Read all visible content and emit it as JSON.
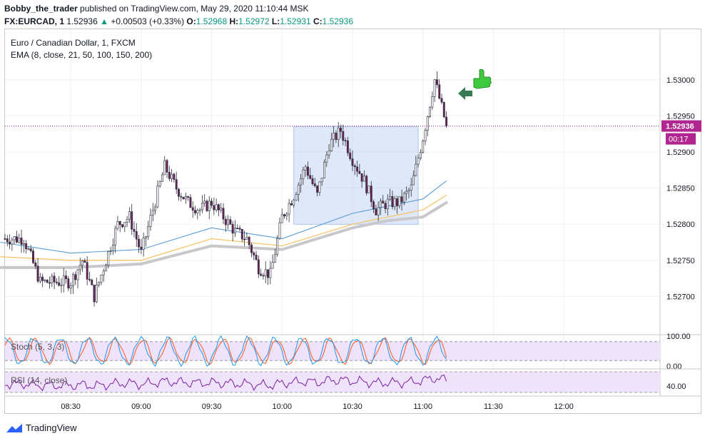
{
  "header": {
    "author": "Bobby_the_trader",
    "published": "published on TradingView.com, May 29, 2020 11:10:44 MSK",
    "symbol": "FX:EURCAD, 1",
    "last": "1.52936",
    "change_arrow": "▲",
    "change": "+0.00503 (+0.33%)",
    "o_label": "O:",
    "o": "1.52968",
    "h_label": "H:",
    "h": "1.52972",
    "l_label": "L:",
    "l": "1.52931",
    "c_label": "C:",
    "c": "1.52936"
  },
  "legend": {
    "instrument": "Euro / Canadian Dollar, 1, FXCM",
    "ema": "EMA (8, close, 21, 50, 100, 150, 200)"
  },
  "price_badge": {
    "value": "1.52936",
    "countdown": "00:17"
  },
  "stoch": {
    "label": "Stoch (5, 3, 3)",
    "ticks": [
      "100.00",
      "0.00"
    ],
    "upper_band": 80,
    "lower_band": 20
  },
  "rsi": {
    "label": "RSI (14, close)",
    "ticks": [
      "40.00"
    ]
  },
  "footer": {
    "brand": "TradingView"
  },
  "colors": {
    "up_candle": "#ffffff",
    "down_candle": "#6b1f5a",
    "ema_fast": "#5b9bd5",
    "ema_mid": "#f5c56b",
    "ema_slow": "#c8c8cc",
    "zone": "#b7cdf2",
    "stoch_k": "#2196f3",
    "stoch_d": "#ff5722",
    "rsi": "#7b1fa2",
    "indicator_bg": "#efe2fb",
    "thumbs_up": "#3ec93e",
    "arrow": "#3a7a52"
  },
  "icons": {
    "thumbs": "thumbs-up-icon",
    "arrow": "left-arrow-icon",
    "logo": "tradingview-logo-icon"
  },
  "chart_data": {
    "type": "candlestick",
    "title": "Euro / Canadian Dollar, 1, FXCM",
    "x_ticks": [
      "08:30",
      "09:00",
      "09:30",
      "10:00",
      "10:30",
      "11:00",
      "11:30",
      "12:00"
    ],
    "y_ticks": [
      1.53,
      1.5295,
      1.529,
      1.5285,
      1.528,
      1.5275,
      1.527
    ],
    "ylim": [
      1.5265,
      1.5307
    ],
    "last_price": 1.52936,
    "zone": {
      "from": "10:05",
      "to": "10:58",
      "low": 1.528,
      "high": 1.52935
    },
    "price_anchors": [
      [
        "08:10",
        1.5278
      ],
      [
        "08:17",
        1.5272
      ],
      [
        "08:24",
        1.5272
      ],
      [
        "08:30",
        1.5272
      ],
      [
        "08:35",
        1.5275
      ],
      [
        "08:40",
        1.527
      ],
      [
        "08:45",
        1.5275
      ],
      [
        "08:50",
        1.528
      ],
      [
        "08:55",
        1.5281
      ],
      [
        "09:00",
        1.5276
      ],
      [
        "09:05",
        1.5282
      ],
      [
        "09:10",
        1.5288
      ],
      [
        "09:15",
        1.5285
      ],
      [
        "09:20",
        1.5283
      ],
      [
        "09:25",
        1.5282
      ],
      [
        "09:30",
        1.5283
      ],
      [
        "09:35",
        1.5281
      ],
      [
        "09:40",
        1.5279
      ],
      [
        "09:45",
        1.5278
      ],
      [
        "09:50",
        1.5274
      ],
      [
        "09:55",
        1.5273
      ],
      [
        "10:00",
        1.5281
      ],
      [
        "10:05",
        1.5284
      ],
      [
        "10:10",
        1.5288
      ],
      [
        "10:15",
        1.5284
      ],
      [
        "10:20",
        1.5291
      ],
      [
        "10:25",
        1.5293
      ],
      [
        "10:30",
        1.5289
      ],
      [
        "10:35",
        1.5286
      ],
      [
        "10:40",
        1.5282
      ],
      [
        "10:45",
        1.5283
      ],
      [
        "10:50",
        1.5283
      ],
      [
        "10:55",
        1.5285
      ],
      [
        "11:00",
        1.5292
      ],
      [
        "11:05",
        1.53
      ],
      [
        "11:10",
        1.52936
      ]
    ],
    "ema_fast": [
      [
        "08:00",
        1.52775
      ],
      [
        "08:30",
        1.5276
      ],
      [
        "09:00",
        1.52765
      ],
      [
        "09:30",
        1.52795
      ],
      [
        "10:00",
        1.5278
      ],
      [
        "10:30",
        1.52815
      ],
      [
        "10:45",
        1.52825
      ],
      [
        "11:00",
        1.52835
      ],
      [
        "11:10",
        1.5286
      ]
    ],
    "ema_mid": [
      [
        "08:00",
        1.52755
      ],
      [
        "08:30",
        1.5275
      ],
      [
        "09:00",
        1.5275
      ],
      [
        "09:30",
        1.5278
      ],
      [
        "10:00",
        1.5277
      ],
      [
        "10:30",
        1.528
      ],
      [
        "10:45",
        1.5281
      ],
      [
        "11:00",
        1.5282
      ],
      [
        "11:10",
        1.5284
      ]
    ],
    "ema_slow": [
      [
        "08:00",
        1.5274
      ],
      [
        "08:30",
        1.5274
      ],
      [
        "09:00",
        1.52745
      ],
      [
        "09:30",
        1.5277
      ],
      [
        "10:00",
        1.52765
      ],
      [
        "10:30",
        1.52795
      ],
      [
        "10:45",
        1.52805
      ],
      [
        "11:00",
        1.5281
      ],
      [
        "11:10",
        1.5283
      ]
    ]
  }
}
